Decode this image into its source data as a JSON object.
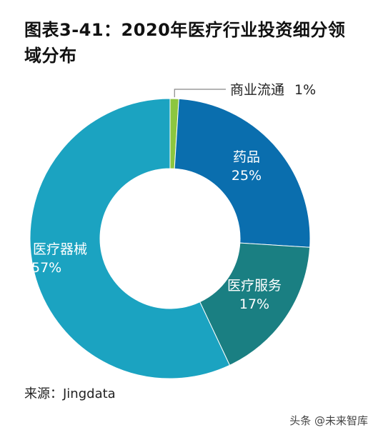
{
  "title": "图表3-41：2020年医疗行业投资细分领域分布",
  "source": "来源：Jingdata",
  "watermark": "头条 @未来智库",
  "chart_data": {
    "type": "pie",
    "variant": "donut",
    "categories": [
      "商业流通",
      "药品",
      "医疗服务",
      "医疗器械"
    ],
    "values": [
      1,
      25,
      17,
      57
    ],
    "value_labels": [
      "1%",
      "25%",
      "17%",
      "57%"
    ],
    "unit": "%",
    "colors": [
      "#8cc63f",
      "#0a6eae",
      "#1a7f82",
      "#1ba3c1"
    ],
    "legend": "none"
  }
}
